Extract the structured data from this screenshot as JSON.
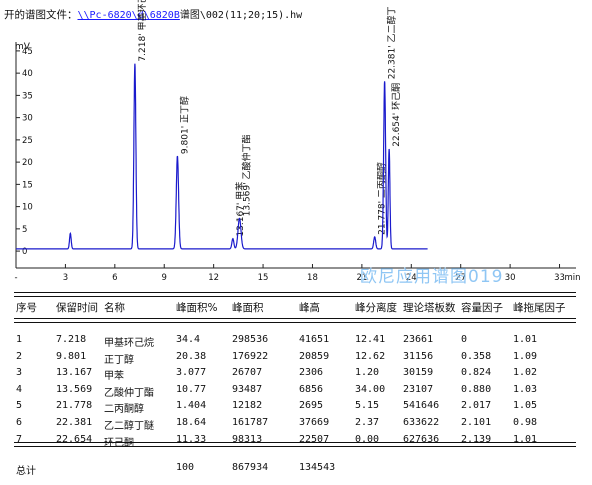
{
  "header": {
    "prefix": "开的谱图文件：",
    "path": "\\\\Pc-6820\\d\\6820B",
    "suffix": "谱图\\002(11;20;15).hw"
  },
  "watermark": "欧尼应用谱图019",
  "chart_data": {
    "type": "line",
    "ylabel": "mV",
    "xlabel_unit": "min",
    "xlim": [
      0,
      34
    ],
    "ylim": [
      -2,
      47
    ],
    "x_ticks": [
      {
        "value": 0,
        "label": "-"
      },
      {
        "value": 3,
        "label": "3"
      },
      {
        "value": 6,
        "label": "6"
      },
      {
        "value": 9,
        "label": "9"
      },
      {
        "value": 12,
        "label": "12"
      },
      {
        "value": 15,
        "label": "15"
      },
      {
        "value": 18,
        "label": "18"
      },
      {
        "value": 21,
        "label": "21"
      },
      {
        "value": 24,
        "label": "24"
      },
      {
        "value": 27,
        "label": "27"
      },
      {
        "value": 30,
        "label": "30"
      },
      {
        "value": 33,
        "label": "33"
      }
    ],
    "y_ticks": [
      0,
      5,
      10,
      15,
      20,
      25,
      30,
      35,
      40,
      45
    ],
    "baseline": 0.5,
    "peaks": [
      {
        "rt": 3.3,
        "height": 3.5,
        "width": 0.05,
        "label": ""
      },
      {
        "rt": 7.218,
        "height": 41.65,
        "width": 0.06,
        "label": "7.218' 甲基环己"
      },
      {
        "rt": 9.801,
        "height": 20.86,
        "width": 0.07,
        "label": "9.801' 正丁醇"
      },
      {
        "rt": 13.167,
        "height": 2.31,
        "width": 0.06,
        "label": "13.167' 甲苯"
      },
      {
        "rt": 13.569,
        "height": 6.86,
        "width": 0.09,
        "label": "13.569' 乙酸仲丁酯"
      },
      {
        "rt": 21.778,
        "height": 2.7,
        "width": 0.06,
        "label": "21.778' 二丙酮醇"
      },
      {
        "rt": 22.381,
        "height": 37.67,
        "width": 0.06,
        "label": "22.381' 乙二醇丁"
      },
      {
        "rt": 22.654,
        "height": 22.51,
        "width": 0.05,
        "label": "22.654' 环己酮"
      }
    ]
  },
  "table": {
    "headers": [
      "序号",
      "保留时间",
      "名称",
      "峰面积%",
      "峰面积",
      "峰高",
      "峰分离度",
      "理论塔板数",
      "容量因子",
      "峰拖尾因子"
    ],
    "rows": [
      [
        "1",
        "7.218",
        "甲基环己烷",
        "34.4",
        "298536",
        "41651",
        "12.41",
        "23661",
        "0",
        "1.01"
      ],
      [
        "2",
        "9.801",
        "正丁醇",
        "20.38",
        "176922",
        "20859",
        "12.62",
        "31156",
        "0.358",
        "1.09"
      ],
      [
        "3",
        "13.167",
        "甲苯",
        "3.077",
        "26707",
        "2306",
        "1.20",
        "30159",
        "0.824",
        "1.02"
      ],
      [
        "4",
        "13.569",
        "乙酸仲丁酯",
        "10.77",
        "93487",
        "6856",
        "34.00",
        "23107",
        "0.880",
        "1.03"
      ],
      [
        "5",
        "21.778",
        "二丙酮醇",
        "1.404",
        "12182",
        "2695",
        "5.15",
        "541646",
        "2.017",
        "1.05"
      ],
      [
        "6",
        "22.381",
        "乙二醇丁醚",
        "18.64",
        "161787",
        "37669",
        "2.37",
        "633622",
        "2.101",
        "0.98"
      ],
      [
        "7",
        "22.654",
        "环己酮",
        "11.33",
        "98313",
        "22507",
        "0.00",
        "627636",
        "2.139",
        "1.01"
      ]
    ],
    "total": {
      "label": "总计",
      "area_pct": "100",
      "area": "867934",
      "height": "134543"
    }
  }
}
